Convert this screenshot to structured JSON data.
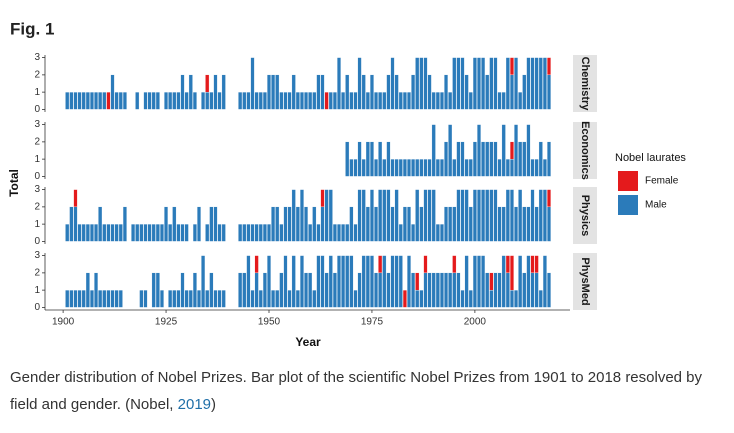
{
  "figure_label": "Fig. 1",
  "chart_data": {
    "type": "bar",
    "stacked": true,
    "xlabel": "Year",
    "ylabel": "Total",
    "legend_title": "Nobel laurates",
    "legend_position": "right",
    "grid": false,
    "x": [
      1901,
      1902,
      1903,
      1904,
      1905,
      1906,
      1907,
      1908,
      1909,
      1910,
      1911,
      1912,
      1913,
      1914,
      1915,
      1916,
      1917,
      1918,
      1919,
      1920,
      1921,
      1922,
      1923,
      1924,
      1925,
      1926,
      1927,
      1928,
      1929,
      1930,
      1931,
      1932,
      1933,
      1934,
      1935,
      1936,
      1937,
      1938,
      1939,
      1940,
      1941,
      1942,
      1943,
      1944,
      1945,
      1946,
      1947,
      1948,
      1949,
      1950,
      1951,
      1952,
      1953,
      1954,
      1955,
      1956,
      1957,
      1958,
      1959,
      1960,
      1961,
      1962,
      1963,
      1964,
      1965,
      1966,
      1967,
      1968,
      1969,
      1970,
      1971,
      1972,
      1973,
      1974,
      1975,
      1976,
      1977,
      1978,
      1979,
      1980,
      1981,
      1982,
      1983,
      1984,
      1985,
      1986,
      1987,
      1988,
      1989,
      1990,
      1991,
      1992,
      1993,
      1994,
      1995,
      1996,
      1997,
      1998,
      1999,
      2000,
      2001,
      2002,
      2003,
      2004,
      2005,
      2006,
      2007,
      2008,
      2009,
      2010,
      2011,
      2012,
      2013,
      2014,
      2015,
      2016,
      2017,
      2018
    ],
    "xlim": [
      1895.6,
      2023.1
    ],
    "xticks": [
      1900,
      1925,
      1950,
      1975,
      2000
    ],
    "ylim": [
      -0.15,
      3.15
    ],
    "yticks": [
      0,
      1,
      2,
      3
    ],
    "facets": [
      {
        "name": "Chemistry",
        "series": [
          {
            "name": "Female",
            "color": "#e41a1c",
            "values": [
              0,
              0,
              0,
              0,
              0,
              0,
              0,
              0,
              0,
              0,
              1,
              0,
              0,
              0,
              0,
              0,
              0,
              0,
              0,
              0,
              0,
              0,
              0,
              0,
              0,
              0,
              0,
              0,
              0,
              0,
              0,
              0,
              0,
              0,
              1,
              0,
              0,
              0,
              0,
              0,
              0,
              0,
              0,
              0,
              0,
              0,
              0,
              0,
              0,
              0,
              0,
              0,
              0,
              0,
              0,
              0,
              0,
              0,
              0,
              0,
              0,
              0,
              0,
              1,
              0,
              0,
              0,
              0,
              0,
              0,
              0,
              0,
              0,
              0,
              0,
              0,
              0,
              0,
              0,
              0,
              0,
              0,
              0,
              0,
              0,
              0,
              0,
              0,
              0,
              0,
              0,
              0,
              0,
              0,
              0,
              0,
              0,
              0,
              0,
              0,
              0,
              0,
              0,
              0,
              0,
              0,
              0,
              0,
              1,
              0,
              0,
              0,
              0,
              0,
              0,
              0,
              0,
              1
            ]
          },
          {
            "name": "Male",
            "color": "#2b7bba",
            "values": [
              1,
              1,
              1,
              1,
              1,
              1,
              1,
              1,
              1,
              1,
              0,
              2,
              1,
              1,
              1,
              0,
              0,
              1,
              0,
              1,
              1,
              1,
              1,
              0,
              1,
              1,
              1,
              1,
              2,
              1,
              2,
              1,
              0,
              1,
              1,
              1,
              2,
              1,
              2,
              0,
              0,
              0,
              1,
              1,
              1,
              3,
              1,
              1,
              1,
              2,
              2,
              2,
              1,
              1,
              1,
              2,
              1,
              1,
              1,
              1,
              1,
              2,
              2,
              0,
              1,
              1,
              3,
              1,
              2,
              1,
              1,
              3,
              2,
              1,
              2,
              1,
              1,
              1,
              2,
              3,
              2,
              1,
              1,
              1,
              2,
              3,
              3,
              3,
              2,
              1,
              1,
              1,
              2,
              1,
              3,
              3,
              3,
              2,
              1,
              3,
              3,
              3,
              2,
              3,
              3,
              1,
              1,
              3,
              2,
              3,
              1,
              2,
              3,
              3,
              3,
              3,
              3,
              2
            ]
          }
        ]
      },
      {
        "name": "Economics",
        "series": [
          {
            "name": "Female",
            "color": "#e41a1c",
            "values": [
              0,
              0,
              0,
              0,
              0,
              0,
              0,
              0,
              0,
              0,
              0,
              0,
              0,
              0,
              0,
              0,
              0,
              0,
              0,
              0,
              0,
              0,
              0,
              0,
              0,
              0,
              0,
              0,
              0,
              0,
              0,
              0,
              0,
              0,
              0,
              0,
              0,
              0,
              0,
              0,
              0,
              0,
              0,
              0,
              0,
              0,
              0,
              0,
              0,
              0,
              0,
              0,
              0,
              0,
              0,
              0,
              0,
              0,
              0,
              0,
              0,
              0,
              0,
              0,
              0,
              0,
              0,
              0,
              0,
              0,
              0,
              0,
              0,
              0,
              0,
              0,
              0,
              0,
              0,
              0,
              0,
              0,
              0,
              0,
              0,
              0,
              0,
              0,
              0,
              0,
              0,
              0,
              0,
              0,
              0,
              0,
              0,
              0,
              0,
              0,
              0,
              0,
              0,
              0,
              0,
              0,
              0,
              0,
              1,
              0,
              0,
              0,
              0,
              0,
              0,
              0,
              0,
              0
            ]
          },
          {
            "name": "Male",
            "color": "#2b7bba",
            "values": [
              0,
              0,
              0,
              0,
              0,
              0,
              0,
              0,
              0,
              0,
              0,
              0,
              0,
              0,
              0,
              0,
              0,
              0,
              0,
              0,
              0,
              0,
              0,
              0,
              0,
              0,
              0,
              0,
              0,
              0,
              0,
              0,
              0,
              0,
              0,
              0,
              0,
              0,
              0,
              0,
              0,
              0,
              0,
              0,
              0,
              0,
              0,
              0,
              0,
              0,
              0,
              0,
              0,
              0,
              0,
              0,
              0,
              0,
              0,
              0,
              0,
              0,
              0,
              0,
              0,
              0,
              0,
              0,
              2,
              1,
              1,
              2,
              1,
              2,
              2,
              1,
              2,
              1,
              2,
              1,
              1,
              1,
              1,
              1,
              1,
              1,
              1,
              1,
              1,
              3,
              1,
              1,
              2,
              3,
              1,
              2,
              2,
              1,
              1,
              2,
              3,
              2,
              2,
              2,
              2,
              1,
              3,
              1,
              1,
              3,
              2,
              2,
              3,
              1,
              1,
              2,
              1,
              2
            ]
          }
        ]
      },
      {
        "name": "Physics",
        "series": [
          {
            "name": "Female",
            "color": "#e41a1c",
            "values": [
              0,
              0,
              1,
              0,
              0,
              0,
              0,
              0,
              0,
              0,
              0,
              0,
              0,
              0,
              0,
              0,
              0,
              0,
              0,
              0,
              0,
              0,
              0,
              0,
              0,
              0,
              0,
              0,
              0,
              0,
              0,
              0,
              0,
              0,
              0,
              0,
              0,
              0,
              0,
              0,
              0,
              0,
              0,
              0,
              0,
              0,
              0,
              0,
              0,
              0,
              0,
              0,
              0,
              0,
              0,
              0,
              0,
              0,
              0,
              0,
              0,
              0,
              1,
              0,
              0,
              0,
              0,
              0,
              0,
              0,
              0,
              0,
              0,
              0,
              0,
              0,
              0,
              0,
              0,
              0,
              0,
              0,
              0,
              0,
              0,
              0,
              0,
              0,
              0,
              0,
              0,
              0,
              0,
              0,
              0,
              0,
              0,
              0,
              0,
              0,
              0,
              0,
              0,
              0,
              0,
              0,
              0,
              0,
              0,
              0,
              0,
              0,
              0,
              0,
              0,
              0,
              0,
              1
            ]
          },
          {
            "name": "Male",
            "color": "#2b7bba",
            "values": [
              1,
              2,
              2,
              1,
              1,
              1,
              1,
              1,
              2,
              1,
              1,
              1,
              1,
              1,
              2,
              0,
              1,
              1,
              1,
              1,
              1,
              1,
              1,
              1,
              2,
              1,
              2,
              1,
              1,
              1,
              0,
              1,
              2,
              0,
              1,
              2,
              2,
              1,
              1,
              0,
              0,
              0,
              1,
              1,
              1,
              1,
              1,
              1,
              1,
              1,
              2,
              2,
              1,
              2,
              2,
              3,
              2,
              3,
              2,
              1,
              2,
              1,
              2,
              3,
              3,
              1,
              1,
              1,
              1,
              2,
              1,
              3,
              3,
              2,
              3,
              2,
              3,
              3,
              3,
              2,
              3,
              1,
              2,
              2,
              1,
              3,
              2,
              3,
              3,
              3,
              1,
              1,
              2,
              2,
              2,
              3,
              3,
              3,
              2,
              3,
              3,
              3,
              3,
              3,
              3,
              2,
              2,
              3,
              3,
              2,
              3,
              2,
              2,
              3,
              2,
              3,
              3,
              2
            ]
          }
        ]
      },
      {
        "name": "PhysMed",
        "series": [
          {
            "name": "Female",
            "color": "#e41a1c",
            "values": [
              0,
              0,
              0,
              0,
              0,
              0,
              0,
              0,
              0,
              0,
              0,
              0,
              0,
              0,
              0,
              0,
              0,
              0,
              0,
              0,
              0,
              0,
              0,
              0,
              0,
              0,
              0,
              0,
              0,
              0,
              0,
              0,
              0,
              0,
              0,
              0,
              0,
              0,
              0,
              0,
              0,
              0,
              0,
              0,
              0,
              0,
              1,
              0,
              0,
              0,
              0,
              0,
              0,
              0,
              0,
              0,
              0,
              0,
              0,
              0,
              0,
              0,
              0,
              0,
              0,
              0,
              0,
              0,
              0,
              0,
              0,
              0,
              0,
              0,
              0,
              0,
              1,
              0,
              0,
              0,
              0,
              0,
              1,
              0,
              0,
              1,
              0,
              1,
              0,
              0,
              0,
              0,
              0,
              0,
              1,
              0,
              0,
              0,
              0,
              0,
              0,
              0,
              0,
              1,
              0,
              0,
              0,
              1,
              2,
              0,
              0,
              0,
              0,
              1,
              1,
              0,
              0,
              0
            ]
          },
          {
            "name": "Male",
            "color": "#2b7bba",
            "values": [
              1,
              1,
              1,
              1,
              1,
              2,
              1,
              2,
              1,
              1,
              1,
              1,
              1,
              1,
              0,
              0,
              0,
              0,
              1,
              1,
              0,
              2,
              2,
              1,
              0,
              1,
              1,
              1,
              2,
              1,
              1,
              2,
              1,
              3,
              1,
              2,
              1,
              1,
              1,
              0,
              0,
              0,
              2,
              2,
              3,
              1,
              2,
              1,
              2,
              3,
              1,
              1,
              2,
              3,
              1,
              3,
              1,
              3,
              2,
              2,
              1,
              3,
              3,
              2,
              3,
              2,
              3,
              3,
              3,
              3,
              1,
              2,
              3,
              3,
              3,
              2,
              2,
              3,
              2,
              3,
              3,
              3,
              0,
              3,
              2,
              1,
              1,
              2,
              2,
              2,
              2,
              2,
              2,
              2,
              2,
              2,
              1,
              3,
              1,
              3,
              3,
              3,
              2,
              1,
              2,
              2,
              3,
              2,
              1,
              1,
              3,
              2,
              3,
              2,
              2,
              1,
              3,
              2
            ]
          }
        ]
      }
    ]
  },
  "caption": {
    "text": "Gender distribution of Nobel Prizes. Bar plot of the scientific Nobel Prizes from 1901 to 2018 resolved by field and gender.",
    "citation_author": "(Nobel,",
    "citation_year": "2019",
    "citation_close": ")"
  }
}
